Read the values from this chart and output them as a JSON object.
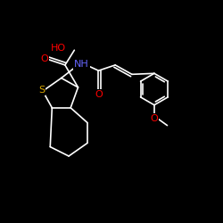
{
  "bg_color": "#000000",
  "bond_color": "#ffffff",
  "atom_colors": {
    "O": "#ff0000",
    "N": "#6666ff",
    "S": "#ddaa00",
    "C": "#ffffff",
    "H": "#ffffff"
  },
  "figsize": [
    2.5,
    2.5
  ],
  "dpi": 100,
  "lw": 1.2,
  "fs": 7,
  "xlim": [
    0,
    12
  ],
  "ylim": [
    0,
    10
  ]
}
